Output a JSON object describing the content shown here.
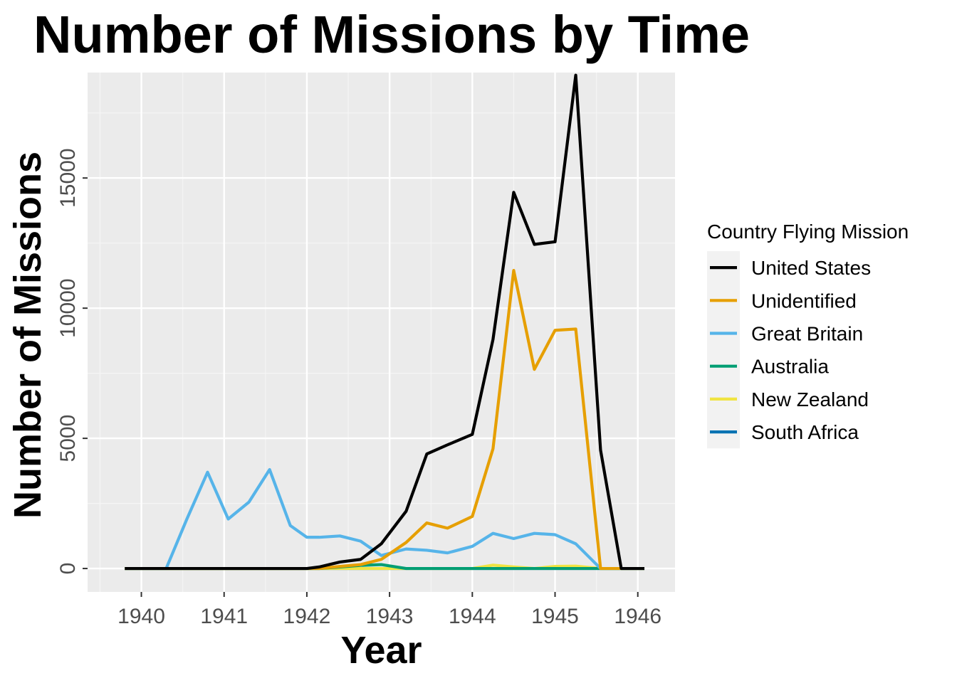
{
  "chart_data": {
    "type": "line",
    "title": "Number of Missions by Time",
    "xlabel": "Year",
    "ylabel": "Number of Missions",
    "legend_title": "Country Flying Mission",
    "legend_position": "right",
    "grid": true,
    "xlim": [
      1939.35,
      1946.45
    ],
    "ylim": [
      -900,
      19050
    ],
    "x_ticks": [
      1940,
      1941,
      1942,
      1943,
      1944,
      1945,
      1946
    ],
    "y_ticks": [
      0,
      5000,
      10000,
      15000
    ],
    "colors": {
      "panel_background": "#ebebeb",
      "grid_major": "#ffffff",
      "grid_minor": "#f5f5f5",
      "legend_key_background": "#f2f2f2"
    },
    "series": [
      {
        "name": "United States",
        "color": "#000000",
        "x": [
          1939.8,
          1940.3,
          1940.55,
          1940.8,
          1941.05,
          1941.3,
          1941.55,
          1941.8,
          1942.0,
          1942.15,
          1942.4,
          1942.65,
          1942.9,
          1943.2,
          1943.45,
          1943.7,
          1944.0,
          1944.25,
          1944.5,
          1944.75,
          1945.0,
          1945.25,
          1945.55,
          1945.8,
          1946.08
        ],
        "y": [
          0,
          0,
          0,
          0,
          0,
          0,
          0,
          0,
          0,
          60,
          250,
          350,
          950,
          2200,
          4400,
          4750,
          5150,
          8800,
          14450,
          12450,
          12550,
          18950,
          4550,
          0,
          0
        ]
      },
      {
        "name": "Unidentified",
        "color": "#e69f00",
        "x": [
          1939.8,
          1940.3,
          1940.55,
          1940.8,
          1941.05,
          1941.3,
          1941.55,
          1941.8,
          1942.0,
          1942.15,
          1942.4,
          1942.65,
          1942.9,
          1943.2,
          1943.45,
          1943.7,
          1944.0,
          1944.25,
          1944.5,
          1944.75,
          1945.0,
          1945.25,
          1945.55,
          1945.8,
          1946.08
        ],
        "y": [
          0,
          0,
          0,
          0,
          0,
          0,
          0,
          0,
          0,
          0,
          80,
          150,
          350,
          1000,
          1750,
          1550,
          2000,
          4600,
          11450,
          7650,
          9150,
          9200,
          0,
          0,
          0
        ]
      },
      {
        "name": "Great Britain",
        "color": "#56b4e9",
        "x": [
          1939.8,
          1940.3,
          1940.55,
          1940.8,
          1941.05,
          1941.3,
          1941.55,
          1941.8,
          1942.0,
          1942.15,
          1942.4,
          1942.65,
          1942.9,
          1943.2,
          1943.45,
          1943.7,
          1944.0,
          1944.25,
          1944.5,
          1944.75,
          1945.0,
          1945.25,
          1945.55,
          1945.8,
          1946.08
        ],
        "y": [
          0,
          0,
          1900,
          3700,
          1900,
          2550,
          3800,
          1650,
          1200,
          1200,
          1250,
          1050,
          500,
          750,
          700,
          600,
          850,
          1350,
          1150,
          1350,
          1300,
          950,
          0,
          0,
          0
        ]
      },
      {
        "name": "Australia",
        "color": "#009e73",
        "x": [
          1939.8,
          1942.15,
          1942.4,
          1942.65,
          1942.9,
          1943.2,
          1946.08
        ],
        "y": [
          0,
          0,
          60,
          120,
          150,
          0,
          0
        ]
      },
      {
        "name": "New Zealand",
        "color": "#f0e442",
        "x": [
          1939.8,
          1944.0,
          1944.25,
          1944.5,
          1944.75,
          1945.0,
          1945.25,
          1945.55,
          1946.08
        ],
        "y": [
          0,
          0,
          130,
          60,
          0,
          80,
          90,
          0,
          0
        ]
      },
      {
        "name": "South Africa",
        "color": "#0072b2",
        "x": [
          1939.8,
          1946.08
        ],
        "y": [
          0,
          0
        ]
      }
    ]
  }
}
